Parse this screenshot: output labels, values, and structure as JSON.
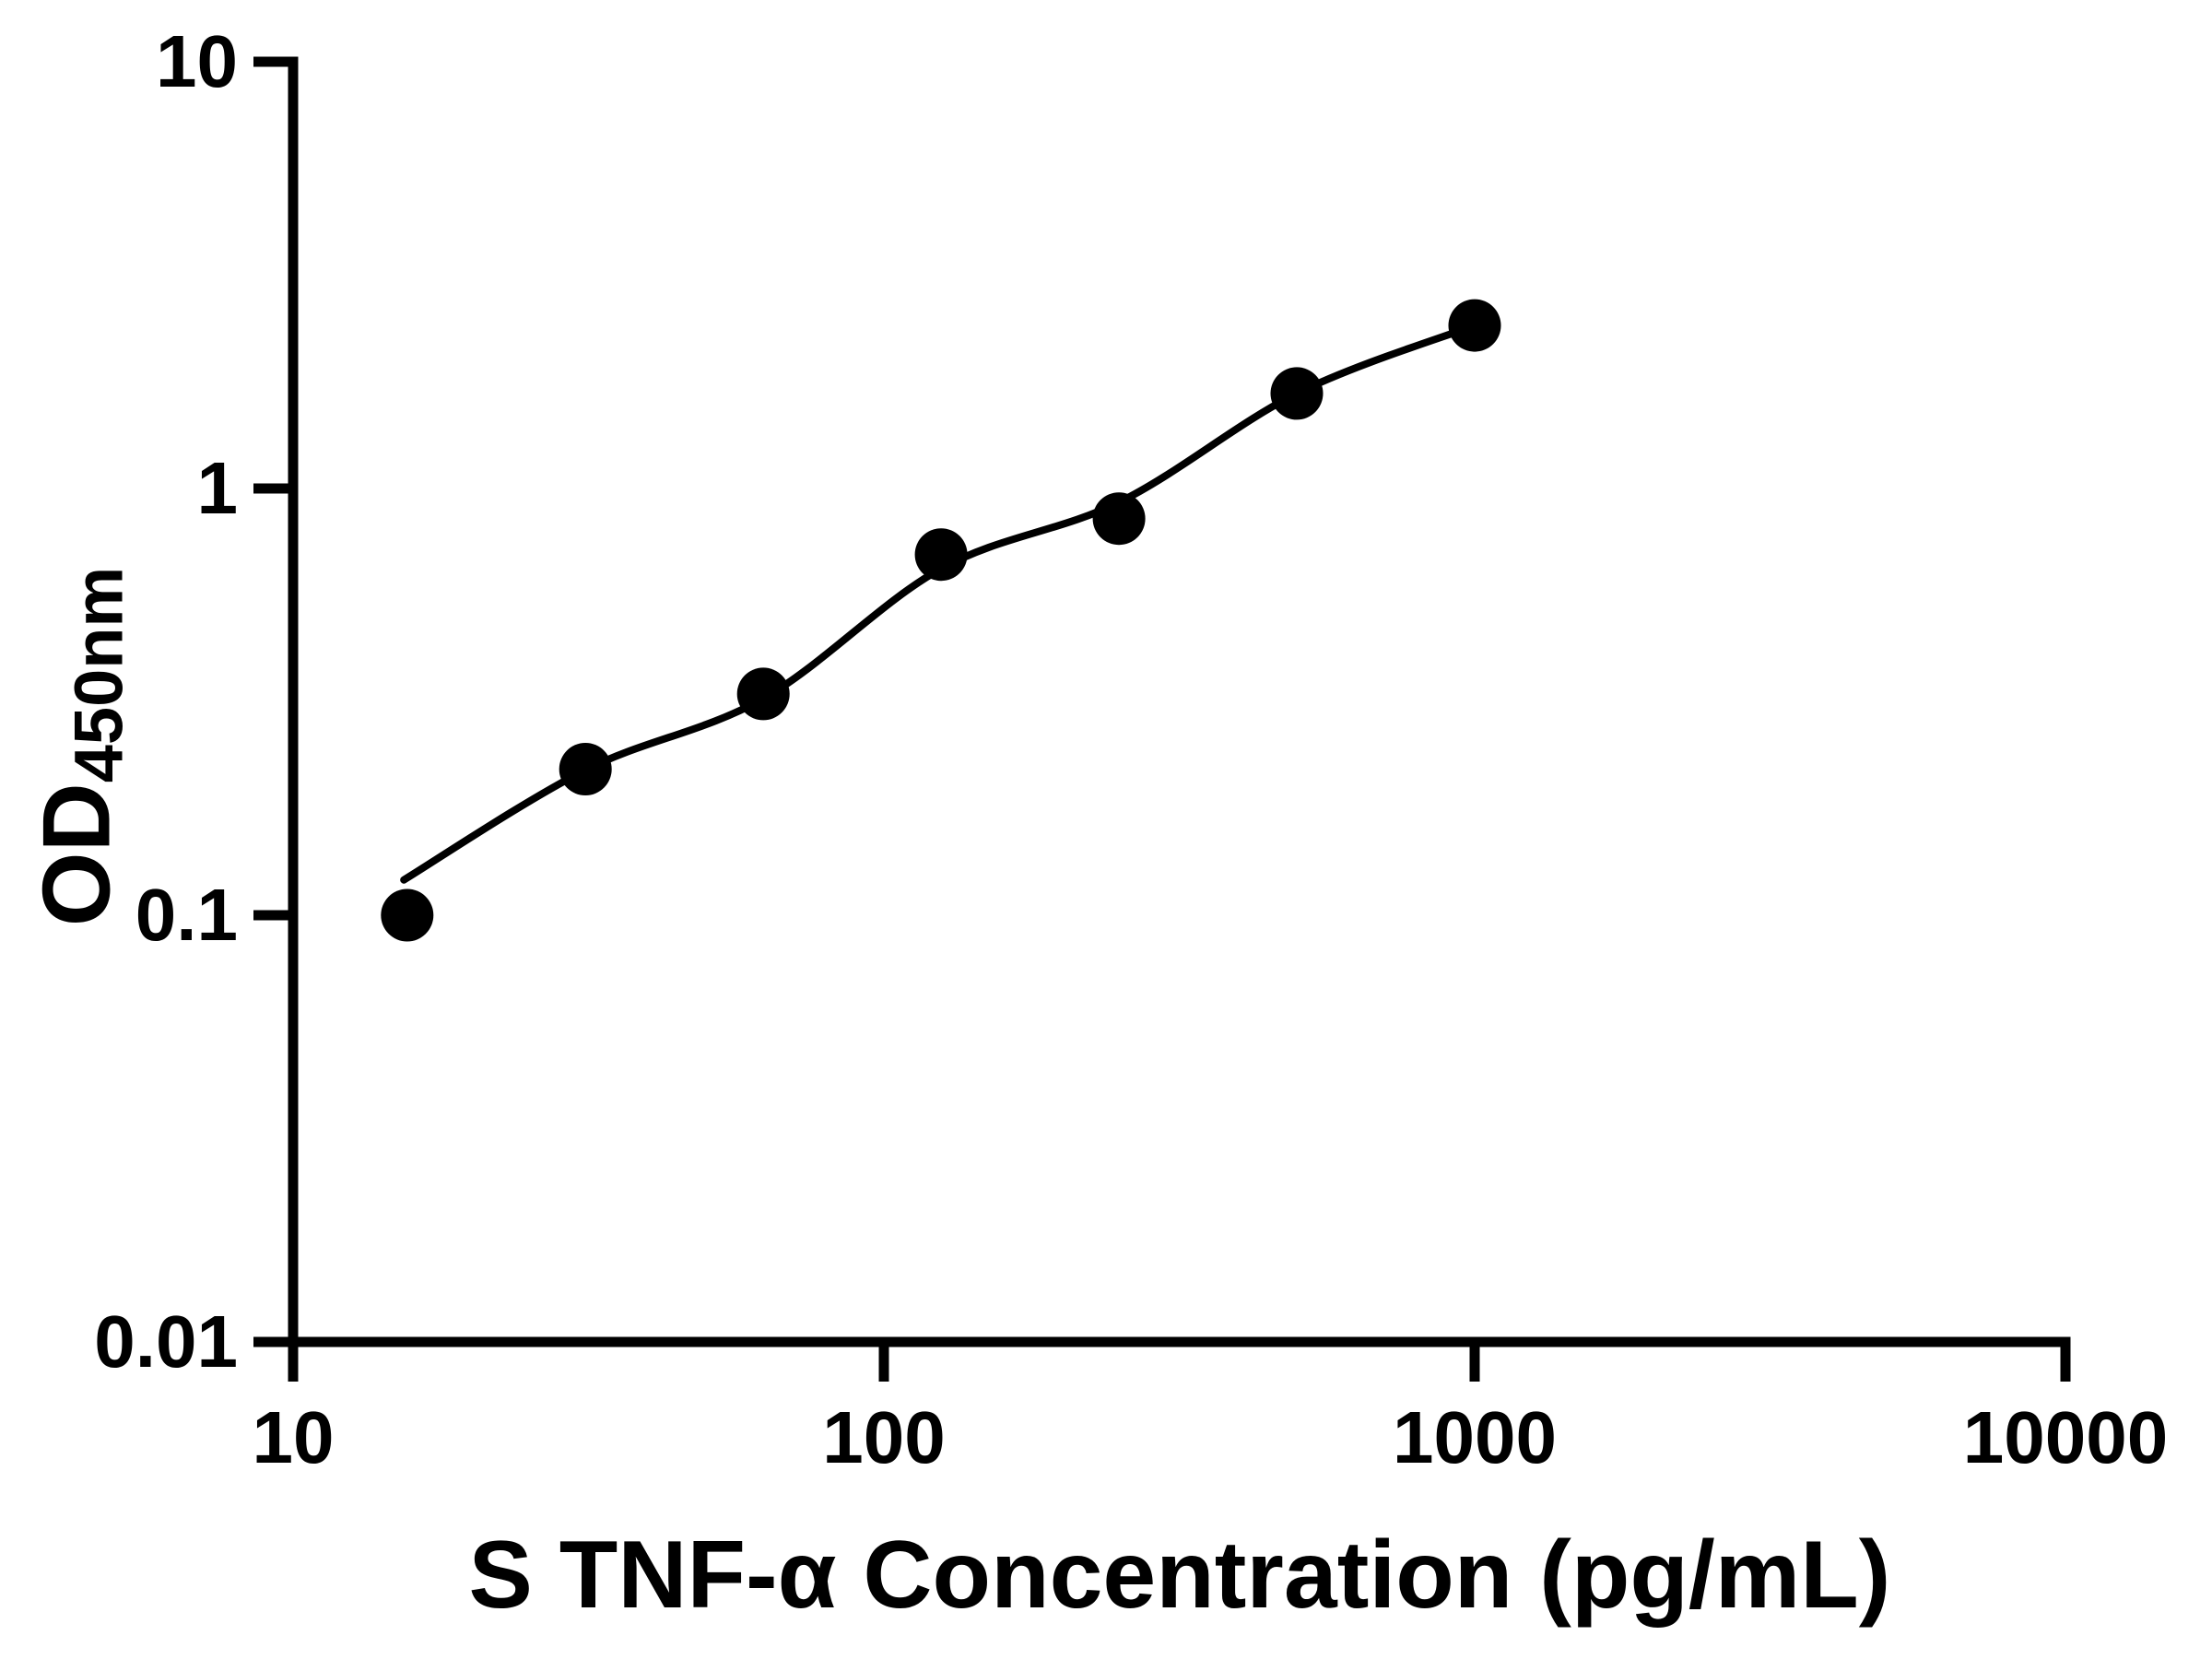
{
  "chart_data": {
    "type": "scatter",
    "title": "",
    "xlabel": "S TNF-α Concentration (pg/mL)",
    "ylabel": "OD450nm",
    "ylabel_main": "OD",
    "ylabel_sub": "450nm",
    "x_scale": "log",
    "y_scale": "log",
    "xlim": [
      10,
      10000
    ],
    "ylim": [
      0.01,
      10
    ],
    "x_ticks": [
      10,
      100,
      1000,
      10000
    ],
    "x_tick_labels": [
      "10",
      "100",
      "1000",
      "10000"
    ],
    "y_ticks": [
      10,
      1,
      0.1,
      0.01
    ],
    "y_tick_labels": [
      "10",
      "1",
      "0.1",
      "0.01"
    ],
    "grid": false,
    "legend": false,
    "marker_color": "#000000",
    "line_color": "#000000",
    "background_color": "#ffffff",
    "series": [
      {
        "name": "standard-points",
        "type": "scatter",
        "marker": "filled-circle",
        "x": [
          15.6,
          31.25,
          62.5,
          125,
          250,
          500,
          1000
        ],
        "y": [
          0.1,
          0.22,
          0.33,
          0.7,
          0.85,
          1.67,
          2.41
        ]
      },
      {
        "name": "fitted-curve",
        "type": "line",
        "x": [
          15.4,
          31.25,
          62.5,
          125,
          250,
          500,
          1000
        ],
        "y": [
          0.121,
          0.219,
          0.322,
          0.649,
          0.928,
          1.67,
          2.41
        ]
      }
    ]
  }
}
